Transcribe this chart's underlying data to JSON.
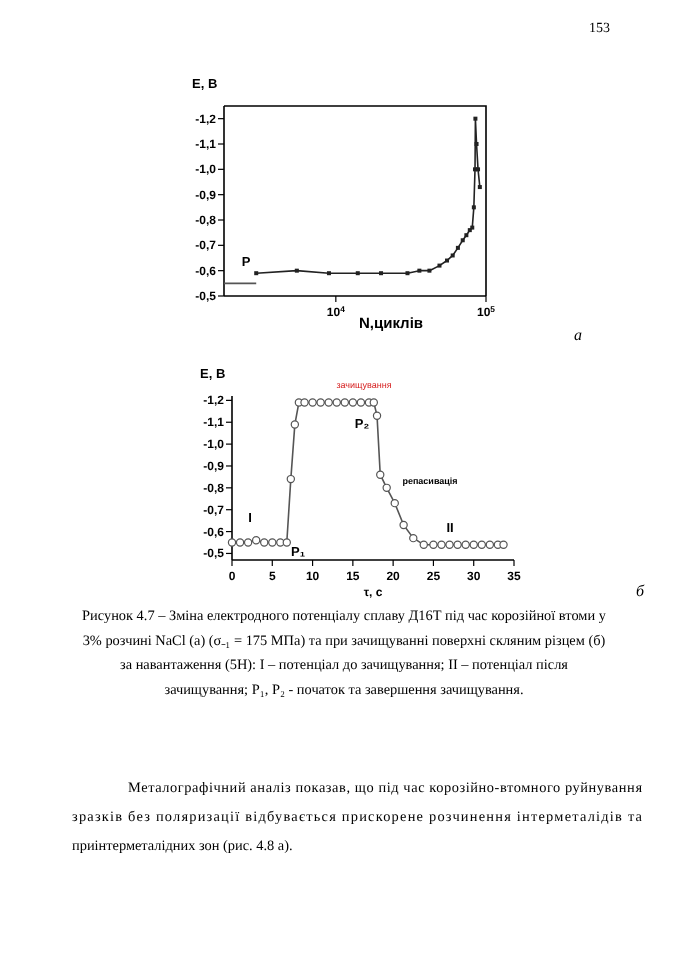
{
  "chart_data": [
    {
      "type": "line",
      "ylabel": "E, B",
      "xlabel": "N,циклів",
      "log": "x",
      "xlim": [
        1800,
        100000
      ],
      "ylim": [
        -0.5,
        -1.25
      ],
      "xticks": [
        {
          "value": 10000,
          "label": "10$^{4}$"
        },
        {
          "value": 100000,
          "label": "10$^{5}$"
        }
      ],
      "yticks": [
        {
          "value": -1.2,
          "label": "-1,2"
        },
        {
          "value": -1.1,
          "label": "-1,1"
        },
        {
          "value": -1.0,
          "label": "-1,0"
        },
        {
          "value": -0.9,
          "label": "-0,9"
        },
        {
          "value": -0.8,
          "label": "-0,8"
        },
        {
          "value": -0.7,
          "label": "-0,7"
        },
        {
          "value": -0.6,
          "label": "-0,6"
        },
        {
          "value": -0.5,
          "label": "-0,5"
        }
      ],
      "marker": "square",
      "line_style": "solid",
      "grid": false,
      "series": [
        {
          "color": "#222222",
          "x": [
            2950,
            5500,
            9000,
            14000,
            20000,
            30000,
            36000,
            42000,
            49000,
            55000,
            60000,
            65000,
            70000,
            74000,
            78000,
            81000,
            83000,
            84500,
            85000,
            86500,
            88500,
            91000
          ],
          "values": [
            -0.59,
            -0.6,
            -0.59,
            -0.59,
            -0.59,
            -0.59,
            -0.6,
            -0.6,
            -0.62,
            -0.64,
            -0.66,
            -0.69,
            -0.72,
            -0.74,
            -0.76,
            -0.77,
            -0.85,
            -1.0,
            -1.2,
            -1.1,
            -1.0,
            -0.93
          ]
        },
        {
          "color": "#555555",
          "marker": "none",
          "x": [
            1800,
            2950
          ],
          "values": [
            -0.55,
            -0.55
          ]
        }
      ],
      "annotations": [
        "153",
        "P",
        "а"
      ]
    },
    {
      "type": "line",
      "ylabel": "E, B",
      "xlabel": "τ, с",
      "xlim": [
        0,
        35
      ],
      "ylim": [
        -0.47,
        -1.22
      ],
      "xticks": [
        0,
        5,
        10,
        15,
        20,
        25,
        30,
        35
      ],
      "yticks": [
        {
          "value": -1.2,
          "label": "-1,2"
        },
        {
          "value": -1.1,
          "label": "-1,1"
        },
        {
          "value": -1.0,
          "label": "-1,0"
        },
        {
          "value": -0.9,
          "label": "-0,9"
        },
        {
          "value": -0.8,
          "label": "-0,8"
        },
        {
          "value": -0.7,
          "label": "-0,7"
        },
        {
          "value": -0.6,
          "label": "-0,6"
        },
        {
          "value": -0.5,
          "label": "-0,5"
        }
      ],
      "marker": "circle",
      "line_style": "solid",
      "grid": false,
      "series": [
        {
          "color": "#555555",
          "x": [
            0,
            1,
            2,
            3,
            4,
            5,
            6,
            6.8,
            7.3,
            7.8,
            8.3,
            9,
            10,
            11,
            12,
            13,
            14,
            15,
            16,
            17,
            17.6,
            18,
            18.4,
            19.2,
            20.2,
            21.3,
            22.5,
            23.8,
            25,
            26,
            27,
            28,
            29,
            30,
            31,
            32,
            33,
            33.7
          ],
          "values": [
            -0.55,
            -0.55,
            -0.55,
            -0.56,
            -0.55,
            -0.55,
            -0.55,
            -0.55,
            -0.84,
            -1.09,
            -1.19,
            -1.19,
            -1.19,
            -1.19,
            -1.19,
            -1.19,
            -1.19,
            -1.19,
            -1.19,
            -1.19,
            -1.19,
            -1.13,
            -0.86,
            -0.8,
            -0.73,
            -0.63,
            -0.57,
            -0.54,
            -0.54,
            -0.54,
            -0.54,
            -0.54,
            -0.54,
            -0.54,
            -0.54,
            -0.54,
            -0.54,
            -0.54
          ]
        }
      ],
      "annotations": [
        "зачищування",
        "P₂",
        "P₁",
        "I",
        "II",
        "репасивація",
        "б",
        "Рисунок 4.7 – Зміна електродного потенціалу сплаву Д16Т під час корозійної втоми у 3% розчині NaCl (а) (σ₋₁ = 175 МПа) та при зачищуванні поверхні скляним різцем (б) за навантаження (5Н): I – потенціал до зачищування; II – потенціал після зачищування; P₁, P₂ - початок та завершення зачищування.",
        "Металографічний аналіз показав, що під час корозійно-втомного руйнування зразків без поляризації відбувається прискорене розчинення інтерметалідів та приінтерметалідних зон (рис. 4.8 а)."
      ]
    }
  ]
}
